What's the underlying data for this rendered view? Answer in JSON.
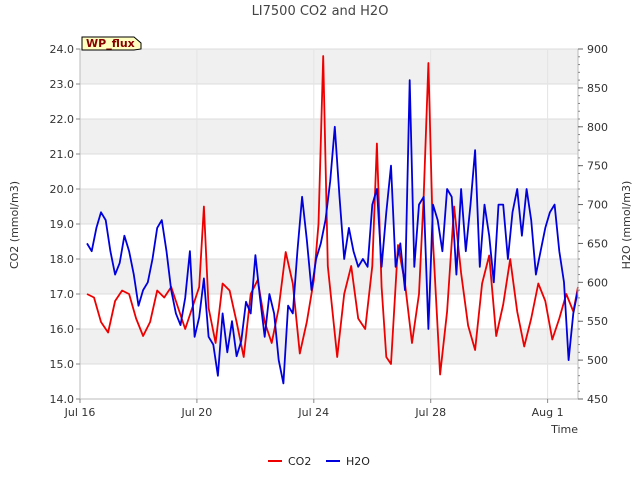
{
  "chart_data": {
    "type": "line",
    "title": "LI7500 CO2 and H2O",
    "xlabel": "Time",
    "ylabel_left": "CO2 (mmol/m3)",
    "ylabel_right": "H2O (mmol/m3)",
    "badge": "WP_flux",
    "xlim": [
      0,
      21.3
    ],
    "ylim_left": [
      14.0,
      24.0
    ],
    "ylim_right": [
      450,
      900
    ],
    "x_ticks": [
      {
        "value": 0,
        "label": "Jul 16"
      },
      {
        "value": 5,
        "label": "Jul 20"
      },
      {
        "value": 10,
        "label": "Jul 24"
      },
      {
        "value": 15,
        "label": "Jul 28"
      },
      {
        "value": 20,
        "label": "Aug 1"
      }
    ],
    "y_ticks_left": [
      "14.0",
      "15.0",
      "16.0",
      "17.0",
      "18.0",
      "19.0",
      "20.0",
      "21.0",
      "22.0",
      "23.0",
      "24.0"
    ],
    "y_ticks_right": [
      "450",
      "500",
      "550",
      "600",
      "650",
      "700",
      "750",
      "800",
      "850",
      "900"
    ],
    "grid": true,
    "legend_position": "bottom-center",
    "series": [
      {
        "name": "CO2",
        "axis": "left",
        "color": "#ee0000",
        "x": [
          0.3,
          0.6,
          0.9,
          1.2,
          1.5,
          1.8,
          2.1,
          2.4,
          2.7,
          3.0,
          3.3,
          3.6,
          3.9,
          4.2,
          4.5,
          4.8,
          5.1,
          5.3,
          5.5,
          5.8,
          6.1,
          6.4,
          6.7,
          7.0,
          7.3,
          7.6,
          7.9,
          8.2,
          8.5,
          8.8,
          9.1,
          9.4,
          9.7,
          10.0,
          10.2,
          10.4,
          10.6,
          10.8,
          11.0,
          11.3,
          11.6,
          11.9,
          12.2,
          12.5,
          12.7,
          12.9,
          13.1,
          13.3,
          13.6,
          13.9,
          14.2,
          14.5,
          14.7,
          14.9,
          15.1,
          15.4,
          15.7,
          16.0,
          16.3,
          16.6,
          16.9,
          17.2,
          17.5,
          17.8,
          18.1,
          18.4,
          18.7,
          19.0,
          19.3,
          19.6,
          19.9,
          20.2,
          20.5,
          20.8,
          21.1,
          21.3
        ],
        "values": [
          17.0,
          16.9,
          16.2,
          15.9,
          16.8,
          17.1,
          17.0,
          16.3,
          15.8,
          16.2,
          17.1,
          16.9,
          17.2,
          16.6,
          16.0,
          16.6,
          17.2,
          19.5,
          16.6,
          15.6,
          17.3,
          17.1,
          16.2,
          15.2,
          17.0,
          17.4,
          16.2,
          15.6,
          16.6,
          18.2,
          17.3,
          15.3,
          16.2,
          17.4,
          19.0,
          23.8,
          17.8,
          16.5,
          15.2,
          17.0,
          17.8,
          16.3,
          16.0,
          17.8,
          21.3,
          17.2,
          15.2,
          15.0,
          18.4,
          17.3,
          15.6,
          17.0,
          19.8,
          23.6,
          18.5,
          14.7,
          16.5,
          19.5,
          17.6,
          16.1,
          15.4,
          17.3,
          18.1,
          15.8,
          16.7,
          18.0,
          16.5,
          15.5,
          16.3,
          17.3,
          16.8,
          15.7,
          16.3,
          17.0,
          16.5,
          17.2
        ]
      },
      {
        "name": "H2O",
        "axis": "right",
        "color": "#0000dd",
        "x": [
          0.3,
          0.5,
          0.7,
          0.9,
          1.1,
          1.3,
          1.5,
          1.7,
          1.9,
          2.1,
          2.3,
          2.5,
          2.7,
          2.9,
          3.1,
          3.3,
          3.5,
          3.7,
          3.9,
          4.1,
          4.3,
          4.5,
          4.7,
          4.9,
          5.1,
          5.3,
          5.5,
          5.7,
          5.9,
          6.1,
          6.3,
          6.5,
          6.7,
          6.9,
          7.1,
          7.3,
          7.5,
          7.7,
          7.9,
          8.1,
          8.3,
          8.5,
          8.7,
          8.9,
          9.1,
          9.3,
          9.5,
          9.7,
          9.9,
          10.1,
          10.3,
          10.5,
          10.7,
          10.9,
          11.1,
          11.3,
          11.5,
          11.7,
          11.9,
          12.1,
          12.3,
          12.5,
          12.7,
          12.9,
          13.1,
          13.3,
          13.5,
          13.7,
          13.9,
          14.1,
          14.3,
          14.5,
          14.7,
          14.9,
          15.1,
          15.3,
          15.5,
          15.7,
          15.9,
          16.1,
          16.3,
          16.5,
          16.7,
          16.9,
          17.1,
          17.3,
          17.5,
          17.7,
          17.9,
          18.1,
          18.3,
          18.5,
          18.7,
          18.9,
          19.1,
          19.3,
          19.5,
          19.7,
          19.9,
          20.1,
          20.3,
          20.5,
          20.7,
          20.9,
          21.1,
          21.3
        ],
        "values": [
          650,
          640,
          670,
          690,
          680,
          640,
          610,
          625,
          660,
          640,
          610,
          570,
          590,
          600,
          630,
          670,
          680,
          640,
          590,
          560,
          545,
          580,
          640,
          530,
          555,
          605,
          530,
          520,
          480,
          560,
          510,
          550,
          505,
          525,
          575,
          560,
          635,
          580,
          530,
          585,
          560,
          500,
          470,
          570,
          560,
          640,
          710,
          655,
          590,
          630,
          650,
          680,
          730,
          800,
          710,
          630,
          670,
          640,
          620,
          630,
          620,
          700,
          720,
          620,
          690,
          750,
          620,
          650,
          590,
          860,
          620,
          700,
          710,
          540,
          700,
          680,
          640,
          720,
          710,
          610,
          720,
          640,
          700,
          770,
          620,
          700,
          660,
          600,
          700,
          700,
          630,
          690,
          720,
          660,
          720,
          680,
          610,
          640,
          670,
          690,
          700,
          640,
          600,
          500,
          560,
          590
        ]
      }
    ]
  }
}
